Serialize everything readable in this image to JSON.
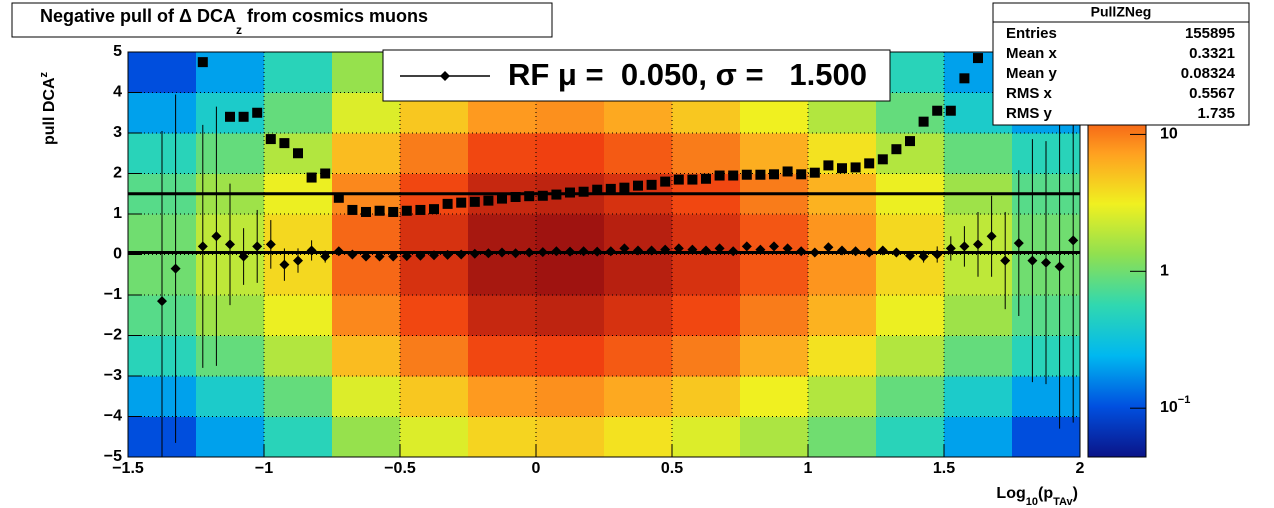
{
  "chart_data": {
    "type": "heatmap",
    "title": {
      "main": "Negative pull of Δ DCA",
      "sub": "z",
      "end": " from cosmics muons"
    },
    "ylabel": {
      "main": "pull DCA",
      "sub": "z"
    },
    "xlabel": {
      "main": "Log",
      "sub1": "10",
      "mid": "(p",
      "sub2": "TAv",
      "end": ")"
    },
    "xlim": [
      -1.5,
      2
    ],
    "ylim": [
      -5,
      5
    ],
    "xticks": [
      {
        "value": -1.5,
        "label": "−1.5"
      },
      {
        "value": -1,
        "label": "−1"
      },
      {
        "value": -0.5,
        "label": "−0.5"
      },
      0,
      0.5,
      1,
      1.5,
      2
    ],
    "yticks": [
      {
        "value": -5,
        "label": "−5"
      },
      {
        "value": -4,
        "label": "−4"
      },
      {
        "value": -3,
        "label": "−3"
      },
      {
        "value": -2,
        "label": "−2"
      },
      {
        "value": -1,
        "label": "−1"
      },
      0,
      1,
      2,
      3,
      4,
      5
    ],
    "grid": true,
    "xbins": [
      -1.5,
      -1.25,
      -1,
      -0.75,
      -0.5,
      -0.25,
      0,
      0.25,
      0.5,
      0.75,
      1,
      1.25,
      1.5,
      1.75,
      2
    ],
    "ybins": [
      -5,
      -4,
      -3,
      -2,
      -1,
      0,
      1,
      2,
      3,
      4,
      5
    ],
    "z": [
      [
        0.1,
        0.2,
        0.5,
        0.8,
        1,
        1,
        0.8,
        0.5,
        0.2,
        0.1
      ],
      [
        0.2,
        0.4,
        0.9,
        1.5,
        2,
        2,
        1.5,
        0.9,
        0.4,
        0.2
      ],
      [
        0.5,
        0.9,
        1.8,
        3,
        4,
        4,
        3,
        1.8,
        0.9,
        0.5
      ],
      [
        1.4,
        2.6,
        5.4,
        9,
        12,
        12,
        9,
        5.4,
        2.6,
        1.4
      ],
      [
        2.6,
        4.8,
        10,
        16,
        22,
        22,
        16,
        10,
        4.8,
        2.6
      ],
      [
        4.2,
        7.7,
        16,
        26,
        35,
        35,
        26,
        16,
        7.7,
        4.2
      ],
      [
        4.6,
        8.4,
        17,
        28,
        38,
        38,
        28,
        17,
        8.4,
        4.6
      ],
      [
        3.6,
        6.6,
        13.5,
        22,
        30,
        30,
        22,
        13.5,
        6.6,
        3.6
      ],
      [
        2.6,
        4.8,
        10,
        16,
        22,
        22,
        16,
        10,
        4.8,
        2.6
      ],
      [
        1.7,
        3.1,
        6.3,
        10,
        14,
        14,
        10,
        6.3,
        3.1,
        1.7
      ],
      [
        1,
        1.8,
        3.6,
        6,
        8,
        8,
        6,
        3.6,
        1.8,
        1
      ],
      [
        0.5,
        0.9,
        1.8,
        3,
        4,
        4,
        3,
        1.8,
        0.9,
        0.5
      ],
      [
        0.2,
        0.4,
        0.9,
        1.5,
        2,
        2,
        1.5,
        0.9,
        0.4,
        0.2
      ],
      [
        0.1,
        0.2,
        0.5,
        0.8,
        1,
        1,
        0.8,
        0.5,
        0.2,
        0.1
      ]
    ],
    "zlim": [
      0.044,
      40
    ],
    "zlog": true,
    "zticks": [
      {
        "value": 0.1,
        "label": "10",
        "exponent": "−1"
      },
      1,
      10
    ],
    "palette": [
      "#0b1488",
      "#0050e0",
      "#00b8f0",
      "#30d8b0",
      "#90e050",
      "#f0f020",
      "#ffa020",
      "#f04010",
      "#9a1010"
    ],
    "x": [
      -1.375,
      -1.325,
      -1.275,
      -1.225,
      -1.175,
      -1.125,
      -1.075,
      -1.025,
      -0.975,
      -0.925,
      -0.875,
      -0.825,
      -0.775,
      -0.725,
      -0.675,
      -0.625,
      -0.575,
      -0.525,
      -0.475,
      -0.425,
      -0.375,
      -0.325,
      -0.275,
      -0.225,
      -0.175,
      -0.125,
      -0.075,
      -0.025,
      0.025,
      0.075,
      0.125,
      0.175,
      0.225,
      0.275,
      0.325,
      0.375,
      0.425,
      0.475,
      0.525,
      0.575,
      0.625,
      0.675,
      0.725,
      0.775,
      0.825,
      0.875,
      0.925,
      0.975,
      1.025,
      1.075,
      1.125,
      1.175,
      1.225,
      1.275,
      1.325,
      1.375,
      1.425,
      1.475,
      1.525,
      1.575,
      1.625,
      1.675,
      1.725,
      1.775,
      1.825,
      1.875,
      1.925,
      1.975
    ],
    "series": [
      {
        "name": "RF μ =  0.050, σ =   1.500",
        "color": "#000000",
        "marker": "diamond",
        "values": [
          -1.15,
          -0.35,
          null,
          0.2,
          0.45,
          0.25,
          -0.05,
          0.2,
          0.25,
          -0.25,
          -0.15,
          0.1,
          -0.05,
          0.08,
          0.0,
          -0.05,
          -0.05,
          -0.05,
          -0.04,
          -0.03,
          -0.02,
          -0.01,
          0.0,
          0.02,
          0.03,
          0.05,
          0.03,
          0.05,
          0.06,
          0.08,
          0.07,
          0.08,
          0.07,
          0.08,
          0.15,
          0.1,
          0.1,
          0.12,
          0.15,
          0.12,
          0.1,
          0.15,
          0.08,
          0.2,
          0.12,
          0.2,
          0.15,
          0.08,
          0.05,
          0.18,
          0.1,
          0.08,
          0.05,
          0.1,
          0.05,
          -0.03,
          -0.05,
          0.0,
          0.15,
          0.2,
          0.25,
          0.45,
          -0.15,
          0.28,
          -0.15,
          -0.2,
          -0.3,
          0.35
        ],
        "errors": [
          4.2,
          4.3,
          null,
          3.0,
          3.2,
          1.5,
          0.7,
          0.9,
          0.6,
          0.4,
          0.3,
          0.25,
          0.15,
          0.1,
          0.08,
          0.05,
          0.05,
          0.05,
          0.05,
          0.05,
          0.05,
          0.05,
          0.05,
          0.05,
          0.05,
          0.05,
          0.05,
          0.05,
          0.05,
          0.05,
          0.05,
          0.05,
          0.05,
          0.05,
          0.05,
          0.05,
          0.05,
          0.05,
          0.05,
          0.05,
          0.05,
          0.05,
          0.05,
          0.05,
          0.05,
          0.05,
          0.05,
          0.05,
          0.05,
          0.05,
          0.06,
          0.06,
          0.07,
          0.08,
          0.1,
          0.1,
          0.15,
          0.2,
          0.3,
          0.5,
          0.8,
          1.0,
          1.2,
          1.8,
          3.0,
          3.0,
          4.0,
          4.5
        ]
      },
      {
        "color": "#000000",
        "marker": "square",
        "values": [
          null,
          null,
          null,
          4.75,
          null,
          3.4,
          3.4,
          3.5,
          2.85,
          2.75,
          2.5,
          1.9,
          2.0,
          1.4,
          1.1,
          1.05,
          1.08,
          1.05,
          1.08,
          1.1,
          1.12,
          1.25,
          1.28,
          1.3,
          1.33,
          1.38,
          1.42,
          1.44,
          1.45,
          1.48,
          1.53,
          1.55,
          1.6,
          1.62,
          1.65,
          1.7,
          1.72,
          1.8,
          1.85,
          1.85,
          1.87,
          1.95,
          1.95,
          1.97,
          1.97,
          1.98,
          2.05,
          1.98,
          2.02,
          2.2,
          2.13,
          2.15,
          2.25,
          2.35,
          2.6,
          2.8,
          3.28,
          3.55,
          3.55,
          4.35,
          4.85,
          null,
          null,
          null,
          null,
          null,
          null,
          null
        ]
      }
    ],
    "fit_lines": [
      0.05,
      1.5
    ],
    "stats": {
      "name": "PullZNeg",
      "rows": [
        [
          "Entries",
          "155895"
        ],
        [
          "Mean x",
          "0.3321"
        ],
        [
          "Mean y",
          "0.08324"
        ],
        [
          "RMS x",
          "0.5567"
        ],
        [
          "RMS y",
          "1.735"
        ]
      ]
    }
  }
}
